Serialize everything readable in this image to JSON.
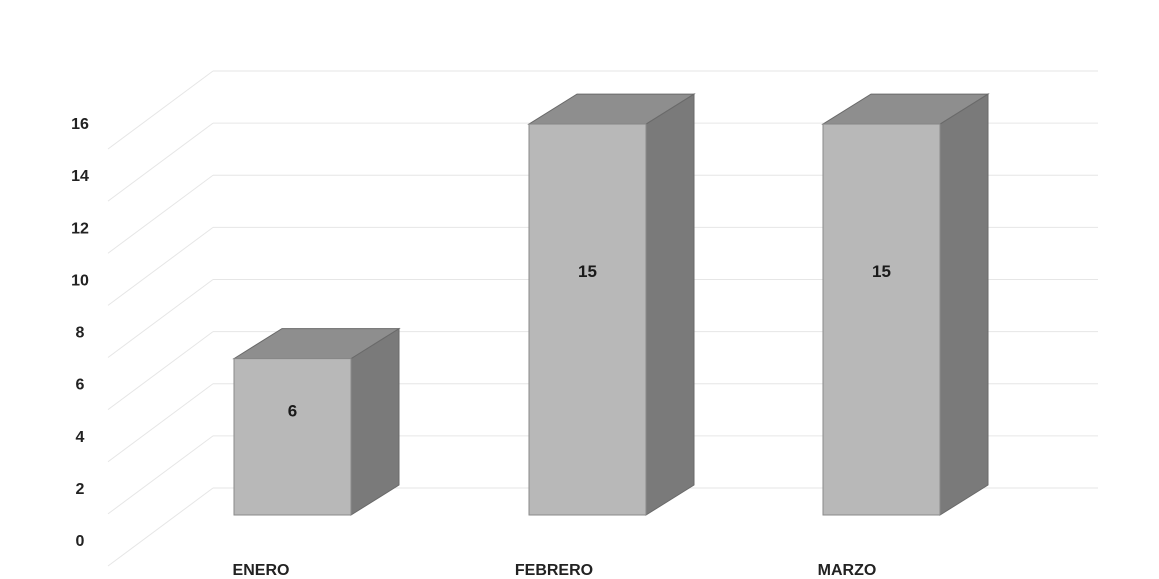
{
  "chart_data": {
    "type": "bar",
    "style": "3d-column",
    "categories": [
      "ENERO",
      "FEBRERO",
      "MARZO"
    ],
    "values": [
      6,
      15,
      15
    ],
    "data_labels": [
      "6",
      "15",
      "15"
    ],
    "ylim": [
      0,
      16
    ],
    "yticks": [
      "0",
      "2",
      "4",
      "6",
      "8",
      "10",
      "12",
      "14",
      "16"
    ],
    "title": "",
    "xlabel": "",
    "ylabel": "",
    "grid": true,
    "legend": "none",
    "colors": {
      "bar_front": "#b8b8b8",
      "bar_top": "#8e8e8e",
      "bar_side": "#7a7a7a",
      "grid": "#e6e6e6"
    }
  }
}
